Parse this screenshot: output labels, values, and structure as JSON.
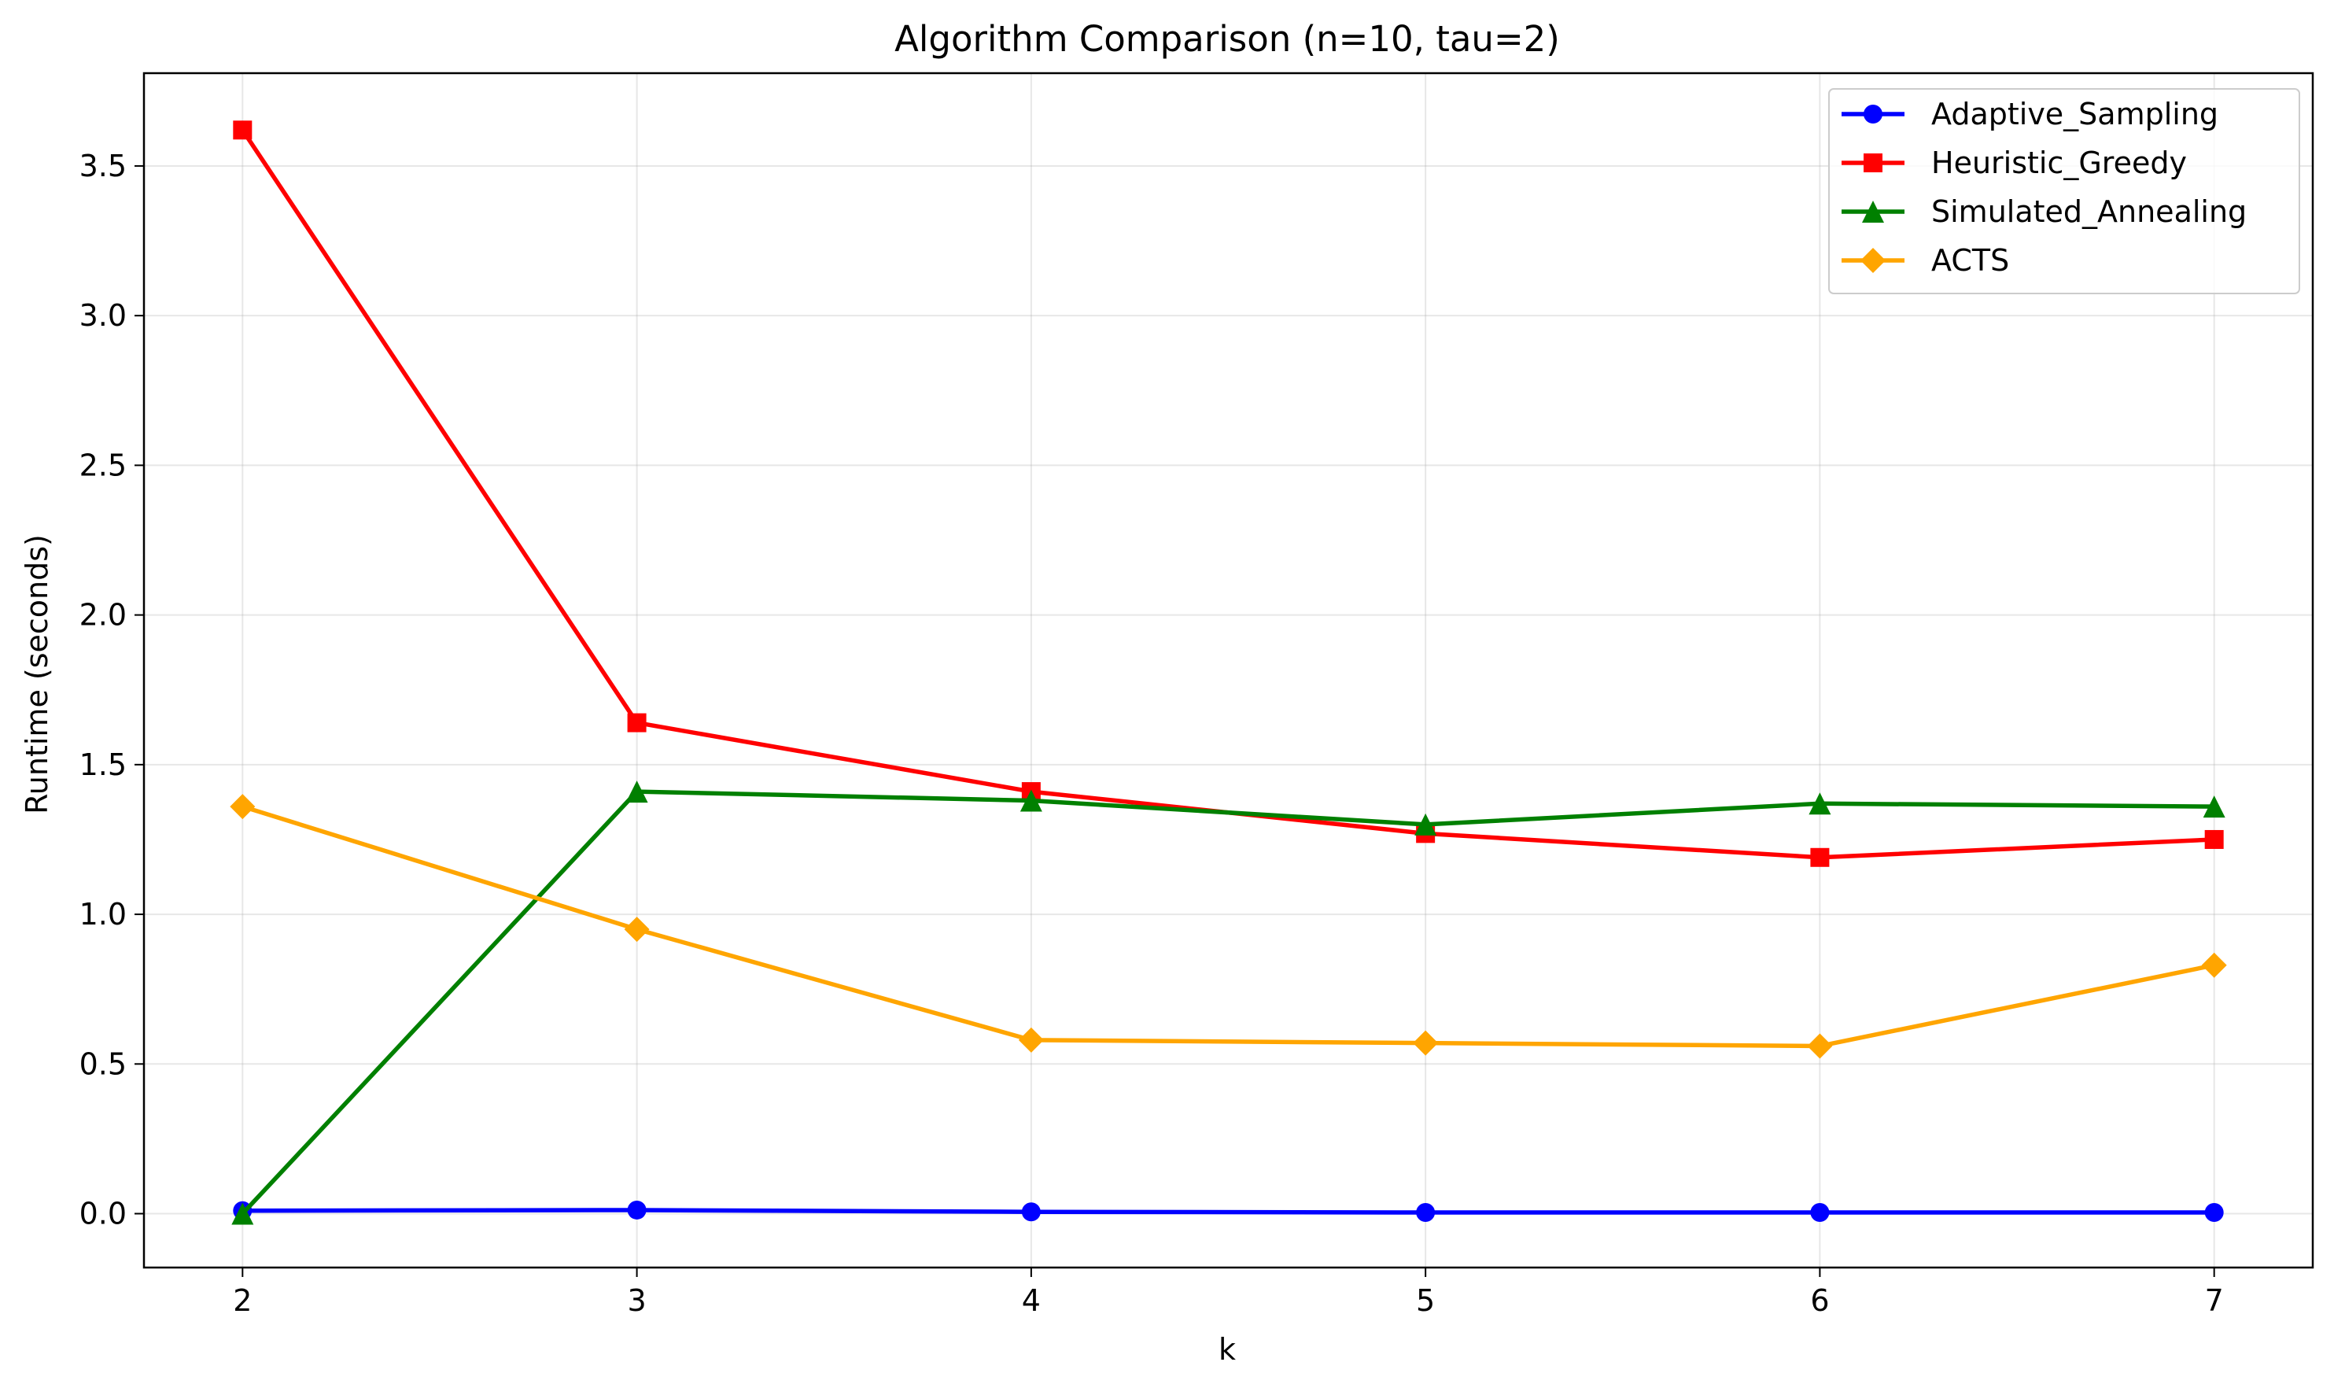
{
  "chart_data": {
    "type": "line",
    "title": "Algorithm Comparison (n=10, tau=2)",
    "xlabel": "k",
    "ylabel": "Runtime (seconds)",
    "x": [
      2,
      3,
      4,
      5,
      6,
      7
    ],
    "xlim": [
      1.75,
      7.25
    ],
    "ylim": [
      -0.18,
      3.81
    ],
    "xticks": [
      "2",
      "3",
      "4",
      "5",
      "6",
      "7"
    ],
    "yticks": [
      "0.0",
      "0.5",
      "1.0",
      "1.5",
      "2.0",
      "2.5",
      "3.0",
      "3.5"
    ],
    "grid": true,
    "legend_position": "top-right",
    "series": [
      {
        "name": "Adaptive_Sampling",
        "color": "#0000ff",
        "marker": "circle",
        "values": [
          0.01,
          0.012,
          0.006,
          0.004,
          0.004,
          0.004
        ]
      },
      {
        "name": "Heuristic_Greedy",
        "color": "#ff0000",
        "marker": "square",
        "values": [
          3.62,
          1.64,
          1.41,
          1.27,
          1.19,
          1.25
        ]
      },
      {
        "name": "Simulated_Annealing",
        "color": "#008000",
        "marker": "triangle",
        "values": [
          0.0,
          1.41,
          1.38,
          1.3,
          1.37,
          1.36
        ]
      },
      {
        "name": "ACTS",
        "color": "#ffa500",
        "marker": "diamond",
        "values": [
          1.36,
          0.95,
          0.58,
          0.57,
          0.56,
          0.83
        ]
      }
    ]
  }
}
